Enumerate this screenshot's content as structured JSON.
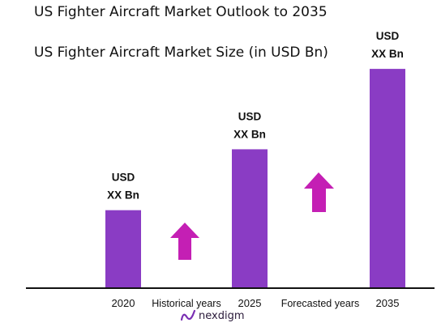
{
  "header": {
    "title": "US Fighter Aircraft Market Outlook to 2035",
    "subtitle": "US Fighter Aircraft Market Size (in USD Bn)"
  },
  "chart_data": {
    "type": "bar",
    "categories": [
      "2020",
      "2025",
      "2035"
    ],
    "values": [
      32,
      57,
      90
    ],
    "value_labels": [
      [
        "USD",
        "XX Bn"
      ],
      [
        "USD",
        "XX Bn"
      ],
      [
        "USD",
        "XX Bn"
      ]
    ],
    "ylim": [
      0,
      100
    ],
    "grid": false,
    "period_labels": [
      "Historical years",
      "Forecasted years"
    ],
    "bar_color": "#8a3cc4",
    "arrow_color": "#c41fb4",
    "axis_color": "#111111"
  },
  "brand": {
    "name": "nexdigm",
    "icon": "nexdigm-logo-icon",
    "color": "#7a2fb3"
  }
}
